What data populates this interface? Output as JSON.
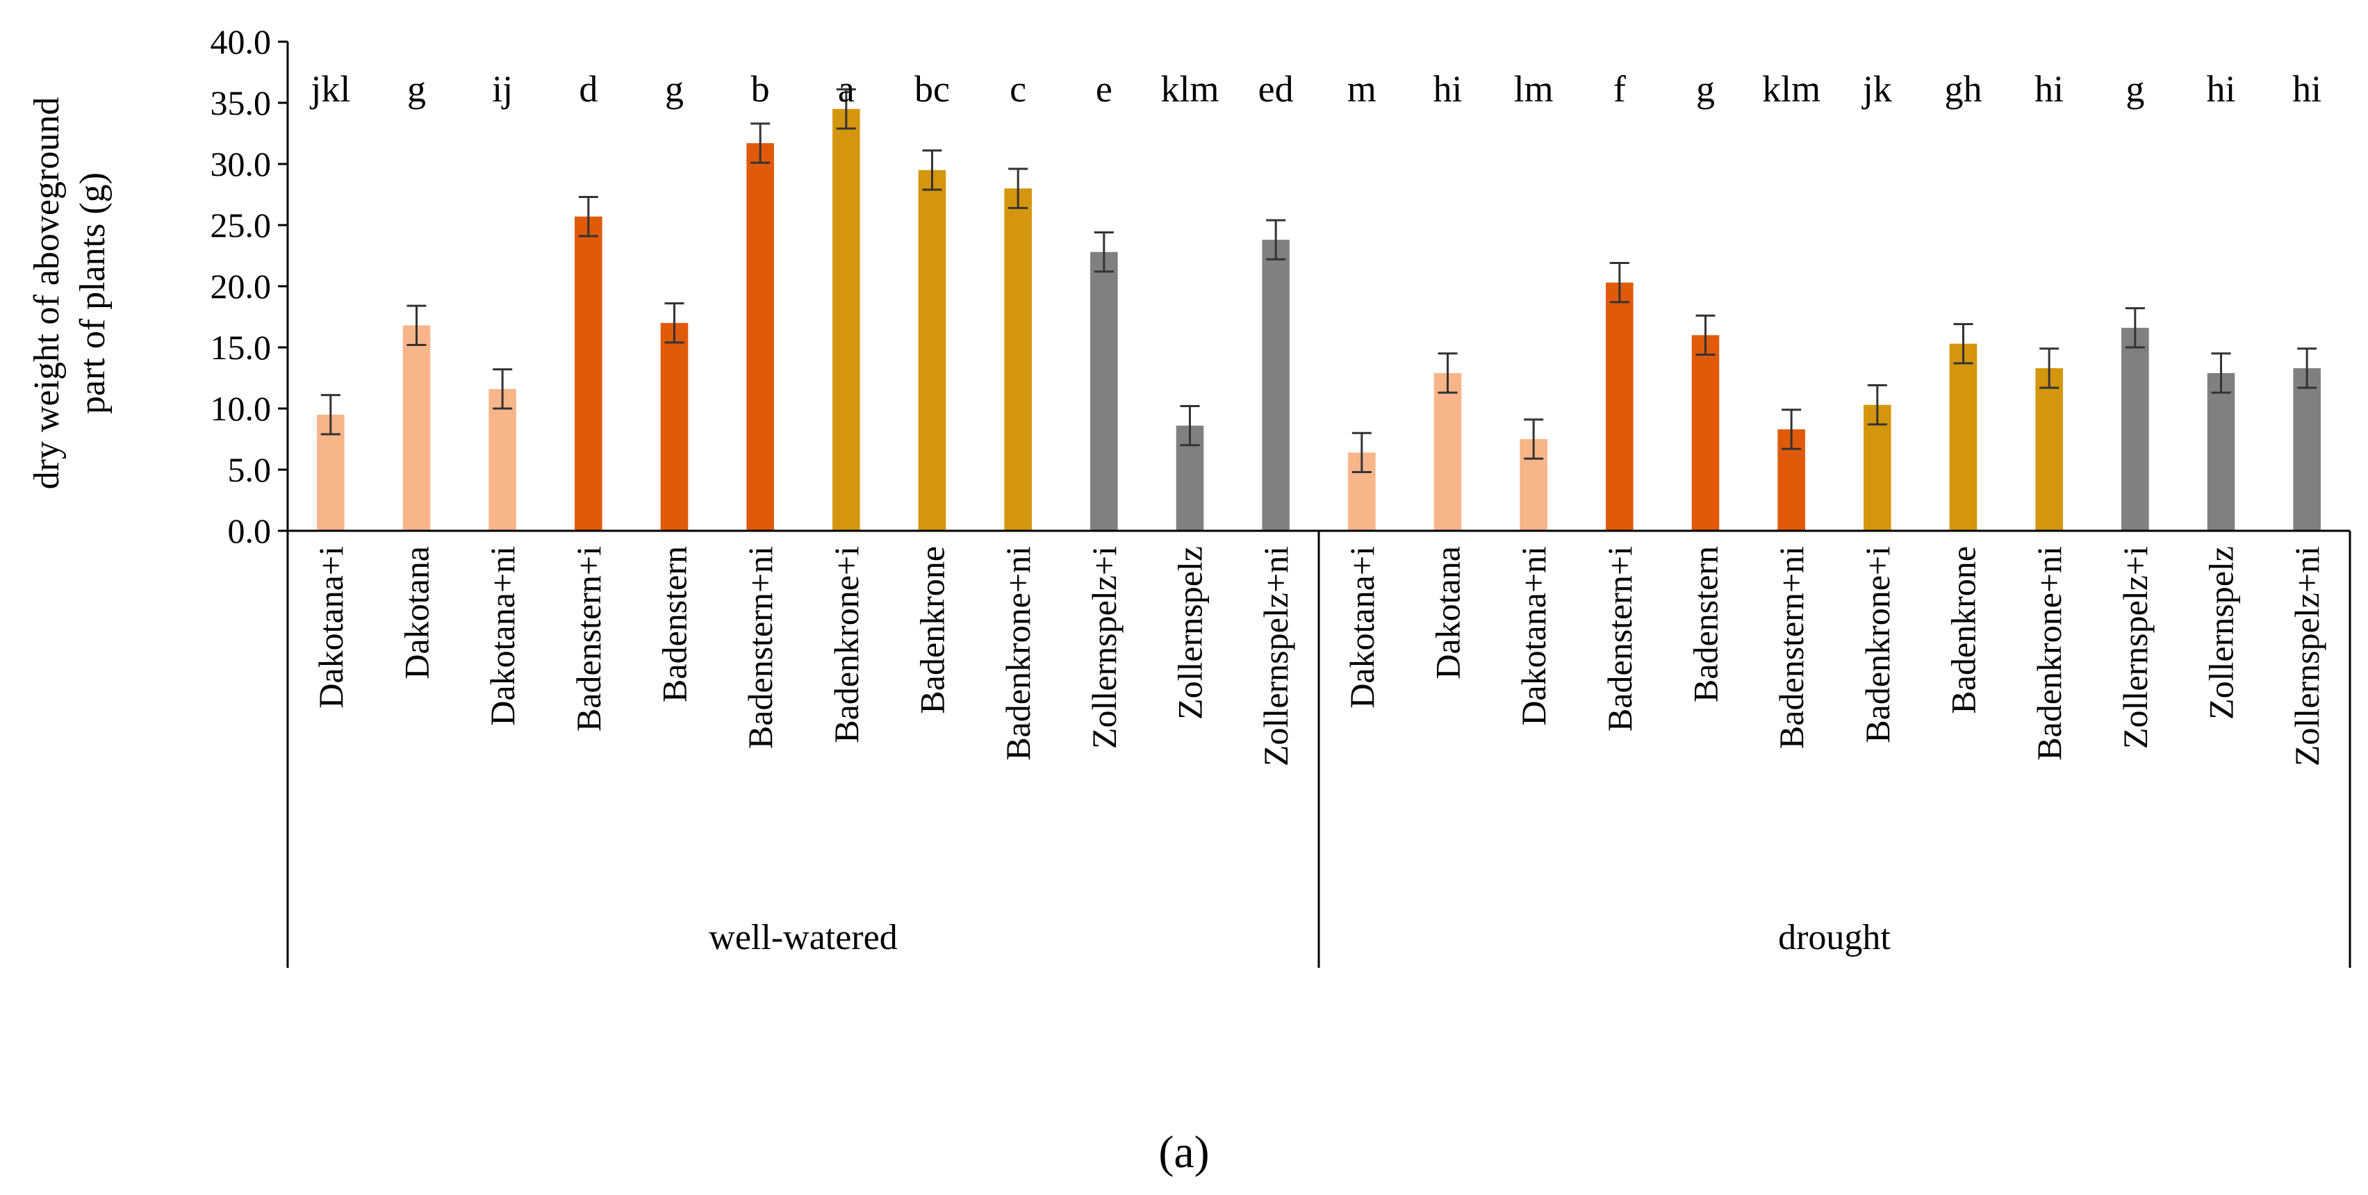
{
  "chart_data": {
    "type": "bar",
    "ylabel_lines": [
      "dry weight of aboveground",
      "part of plants (g)"
    ],
    "ylim": [
      0,
      40
    ],
    "yticks": [
      "0.0",
      "5.0",
      "10.0",
      "15.0",
      "20.0",
      "25.0",
      "30.0",
      "35.0",
      "40.0"
    ],
    "ytick_values": [
      0,
      5,
      10,
      15,
      20,
      25,
      30,
      35,
      40
    ],
    "grid": false,
    "groups": [
      "well-watered",
      "drought"
    ],
    "colors": {
      "Dakotana": "#F9B58A",
      "Badenstern": "#E05A0A",
      "Badenkrone": "#D4960E",
      "Zollernspelz": "#808080"
    },
    "categories": [
      "Dakotana+i",
      "Dakotana",
      "Dakotana+ni",
      "Badenstern+i",
      "Badenstern",
      "Badenstern+ni",
      "Badenkrone+i",
      "Badenkrone",
      "Badenkrone+ni",
      "Zollernspelz+i",
      "Zollernspelz",
      "Zollernspelz+ni",
      "Dakotana+i",
      "Dakotana",
      "Dakotana+ni",
      "Badenstern+i",
      "Badenstern",
      "Badenstern+ni",
      "Badenkrone+i",
      "Badenkrone",
      "Badenkrone+ni",
      "Zollernspelz+i",
      "Zollernspelz",
      "Zollernspelz+ni"
    ],
    "cultivars": [
      "Dakotana",
      "Dakotana",
      "Dakotana",
      "Badenstern",
      "Badenstern",
      "Badenstern",
      "Badenkrone",
      "Badenkrone",
      "Badenkrone",
      "Zollernspelz",
      "Zollernspelz",
      "Zollernspelz",
      "Dakotana",
      "Dakotana",
      "Dakotana",
      "Badenstern",
      "Badenstern",
      "Badenstern",
      "Badenkrone",
      "Badenkrone",
      "Badenkrone",
      "Zollernspelz",
      "Zollernspelz",
      "Zollernspelz"
    ],
    "values": [
      9.5,
      16.8,
      11.6,
      25.7,
      17.0,
      31.7,
      34.5,
      29.5,
      28.0,
      22.8,
      8.6,
      23.8,
      6.4,
      12.9,
      7.5,
      20.3,
      16.0,
      8.3,
      10.3,
      15.3,
      13.3,
      16.6,
      12.9,
      13.3
    ],
    "errors": [
      1.6,
      1.6,
      1.6,
      1.6,
      1.6,
      1.6,
      1.6,
      1.6,
      1.6,
      1.6,
      1.6,
      1.6,
      1.6,
      1.6,
      1.6,
      1.6,
      1.6,
      1.6,
      1.6,
      1.6,
      1.6,
      1.6,
      1.6,
      1.6
    ],
    "significance_letters": [
      "jkl",
      "g",
      "ij",
      "d",
      "g",
      "b",
      "a",
      "bc",
      "c",
      "e",
      "klm",
      "ed",
      "m",
      "hi",
      "lm",
      "f",
      "g",
      "klm",
      "jk",
      "gh",
      "hi",
      "g",
      "hi",
      "hi"
    ]
  },
  "panel_label": "(a)"
}
